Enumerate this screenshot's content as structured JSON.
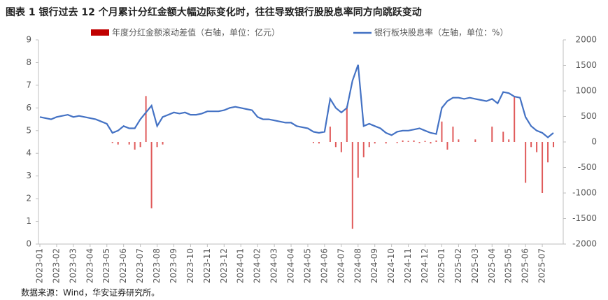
{
  "title": "图表 1  银行过去 12 个月累计分红金额大幅边际变化时，往往导致银行股股息率同方向跳跃变动",
  "source": "数据来源：Wind，华安证券研究所。",
  "chart_data": {
    "type": "bar-line",
    "categories": [
      "2023-01",
      null,
      null,
      "2023-02",
      null,
      null,
      "2023-03",
      null,
      null,
      "2023-04",
      null,
      null,
      "2023-05",
      null,
      null,
      "2023-06",
      null,
      null,
      "2023-07",
      null,
      null,
      "2023-08",
      null,
      null,
      "2023-09",
      null,
      null,
      "2023-10",
      null,
      null,
      "2023-11",
      null,
      null,
      "2023-12",
      null,
      null,
      "2024-01",
      null,
      null,
      "2024-02",
      null,
      null,
      "2024-03",
      null,
      null,
      "2024-04",
      null,
      null,
      "2024-05",
      null,
      null,
      "2024-06",
      null,
      null,
      "2024-07",
      null,
      null,
      "2024-08",
      null,
      null,
      "2024-09",
      null,
      null,
      "2024-10",
      null,
      null,
      "2024-11",
      null,
      null,
      "2024-12",
      null,
      null,
      "2025-01",
      null,
      null,
      "2025-02",
      null,
      null,
      "2025-03",
      null,
      null,
      "2025-04",
      null,
      null,
      "2025-05",
      null,
      null,
      "2025-06",
      null,
      null,
      "2025-07",
      null,
      null
    ],
    "series": [
      {
        "name": "年度分红金额滚动差值（右轴，单位：亿元）",
        "type": "bar",
        "axis": "y2",
        "color": "#e05a5a",
        "values": [
          0,
          0,
          0,
          0,
          0,
          0,
          0,
          0,
          0,
          0,
          0,
          0,
          0,
          -20,
          -50,
          0,
          -50,
          -150,
          -100,
          900,
          -1300,
          -100,
          -50,
          0,
          0,
          0,
          0,
          0,
          0,
          0,
          0,
          0,
          0,
          0,
          0,
          0,
          0,
          0,
          0,
          0,
          0,
          0,
          0,
          0,
          0,
          0,
          0,
          0,
          0,
          -20,
          -30,
          0,
          300,
          -100,
          -200,
          700,
          -1700,
          -700,
          -300,
          -100,
          -30,
          0,
          -30,
          0,
          -20,
          30,
          20,
          30,
          -20,
          20,
          -30,
          30,
          400,
          -150,
          300,
          50,
          0,
          0,
          50,
          0,
          0,
          300,
          0,
          200,
          50,
          900,
          0,
          -800,
          -100,
          -200,
          -1000,
          -400,
          -100
        ]
      },
      {
        "name": "银行板块股息率（左轴，单位：%）",
        "type": "line",
        "color": "#4472c4",
        "values": [
          5.6,
          5.55,
          5.5,
          5.6,
          5.65,
          5.7,
          5.6,
          5.65,
          5.6,
          5.55,
          5.5,
          5.4,
          5.3,
          4.9,
          5.0,
          5.2,
          5.1,
          5.1,
          5.5,
          5.8,
          6.1,
          5.2,
          5.6,
          5.7,
          5.8,
          5.75,
          5.8,
          5.7,
          5.7,
          5.75,
          5.85,
          5.85,
          5.85,
          5.9,
          6.0,
          6.05,
          6.0,
          5.95,
          5.9,
          5.6,
          5.5,
          5.5,
          5.45,
          5.4,
          5.35,
          5.35,
          5.2,
          5.15,
          5.1,
          4.95,
          4.9,
          4.95,
          6.4,
          6.0,
          5.8,
          6.0,
          7.2,
          7.9,
          5.2,
          5.3,
          5.2,
          5.1,
          4.9,
          4.8,
          4.95,
          5.0,
          5.0,
          5.05,
          5.1,
          5.0,
          4.9,
          4.85,
          6.0,
          6.3,
          6.45,
          6.45,
          6.4,
          6.45,
          6.4,
          6.35,
          6.3,
          6.4,
          6.2,
          6.7,
          6.65,
          6.5,
          6.45,
          5.6,
          5.2,
          5.0,
          4.9,
          4.7,
          4.9
        ]
      }
    ],
    "ylim": [
      0,
      9
    ],
    "yticks": [
      0,
      1,
      2,
      3,
      4,
      5,
      6,
      7,
      8,
      9
    ],
    "y2lim": [
      -2000,
      2000
    ],
    "y2ticks": [
      -2000,
      -1500,
      -1000,
      -500,
      0,
      500,
      1000,
      1500,
      2000
    ]
  }
}
